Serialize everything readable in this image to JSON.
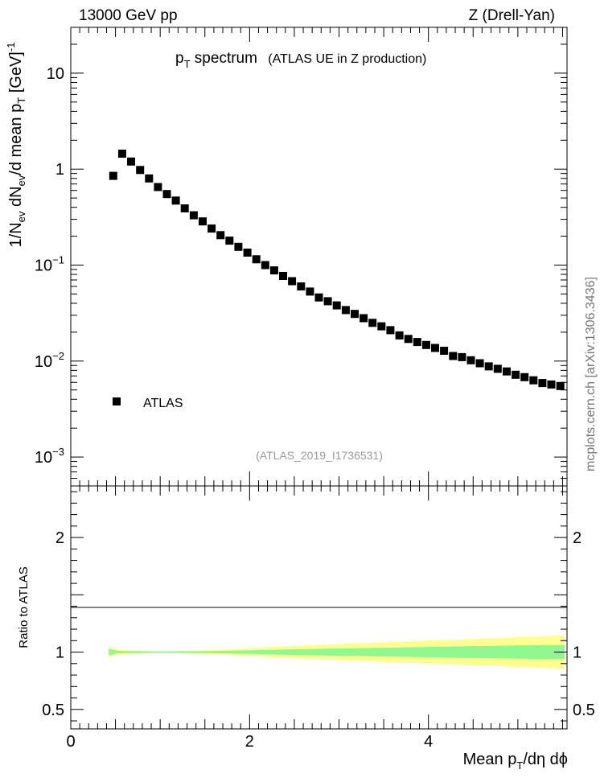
{
  "header": {
    "left": "13000 GeV pp",
    "right": "Z (Drell-Yan)"
  },
  "plot_title": {
    "main": "p",
    "main_sub": "T",
    "main_rest": " spectrum",
    "detail": "(ATLAS UE in Z production)"
  },
  "analysis_id": "(ATLAS_2019_I1736531)",
  "watermark": "mcplots.cern.ch [arXiv:1306.3436]",
  "legend": {
    "label": "ATLAS"
  },
  "upper_yaxis": {
    "label": "1/N_ev dN_ev/d mean p_T [GeV]^-1",
    "ticks": [
      {
        "value": 0.001,
        "base": "10",
        "exp": "−3"
      },
      {
        "value": 0.01,
        "base": "10",
        "exp": "−2"
      },
      {
        "value": 0.1,
        "base": "10",
        "exp": "−1"
      },
      {
        "value": 1,
        "base": "1",
        "exp": ""
      },
      {
        "value": 10,
        "base": "10",
        "exp": ""
      }
    ]
  },
  "ratio_yaxis": {
    "label": "Ratio to ATLAS",
    "ticks": [
      {
        "value": 0.5,
        "label": "0.5"
      },
      {
        "value": 1,
        "label": "1"
      },
      {
        "value": 2,
        "label": "2"
      }
    ]
  },
  "xaxis": {
    "label": "Mean p_T/dη dϕ",
    "ticks": [
      {
        "value": 0,
        "label": "0"
      },
      {
        "value": 2,
        "label": "2"
      },
      {
        "value": 4,
        "label": "4"
      }
    ]
  },
  "chart_data": {
    "type": "scatter",
    "log_y": true,
    "xlim": [
      0,
      5.55
    ],
    "ylim": [
      0.0005,
      30
    ],
    "ratio_ylim": [
      0.33,
      2.45
    ],
    "series": [
      {
        "name": "ATLAS",
        "x": [
          0.475,
          0.575,
          0.675,
          0.775,
          0.875,
          0.975,
          1.075,
          1.175,
          1.275,
          1.375,
          1.475,
          1.575,
          1.675,
          1.775,
          1.875,
          1.975,
          2.075,
          2.175,
          2.275,
          2.375,
          2.475,
          2.575,
          2.675,
          2.775,
          2.875,
          2.975,
          3.075,
          3.175,
          3.275,
          3.375,
          3.475,
          3.575,
          3.675,
          3.775,
          3.875,
          3.975,
          4.075,
          4.175,
          4.275,
          4.375,
          4.475,
          4.575,
          4.675,
          4.775,
          4.875,
          4.975,
          5.075,
          5.175,
          5.275,
          5.375,
          5.475
        ],
        "y": [
          0.85,
          1.45,
          1.2,
          0.98,
          0.8,
          0.65,
          0.55,
          0.47,
          0.39,
          0.33,
          0.285,
          0.24,
          0.205,
          0.18,
          0.155,
          0.135,
          0.115,
          0.1,
          0.088,
          0.077,
          0.068,
          0.06,
          0.053,
          0.046,
          0.042,
          0.038,
          0.034,
          0.031,
          0.028,
          0.025,
          0.023,
          0.021,
          0.0185,
          0.017,
          0.0158,
          0.0147,
          0.0137,
          0.0128,
          0.0113,
          0.011,
          0.0102,
          0.0095,
          0.0088,
          0.0083,
          0.0078,
          0.0072,
          0.0068,
          0.0063,
          0.0059,
          0.0057,
          0.0055
        ]
      }
    ],
    "ratio_bands": {
      "x_edges": [
        0.425,
        0.525,
        1.0,
        1.5,
        2.0,
        2.5,
        3.0,
        3.5,
        4.0,
        4.5,
        5.0,
        5.525
      ],
      "inner_half_width": [
        0.03,
        0.01,
        0.006,
        0.008,
        0.015,
        0.025,
        0.032,
        0.038,
        0.045,
        0.052,
        0.058,
        0.062
      ],
      "outer_half_width": [
        0.05,
        0.02,
        0.008,
        0.015,
        0.035,
        0.055,
        0.07,
        0.085,
        0.1,
        0.115,
        0.13,
        0.145
      ],
      "inner_color": "#90f890",
      "outer_color": "#ffff90"
    }
  }
}
